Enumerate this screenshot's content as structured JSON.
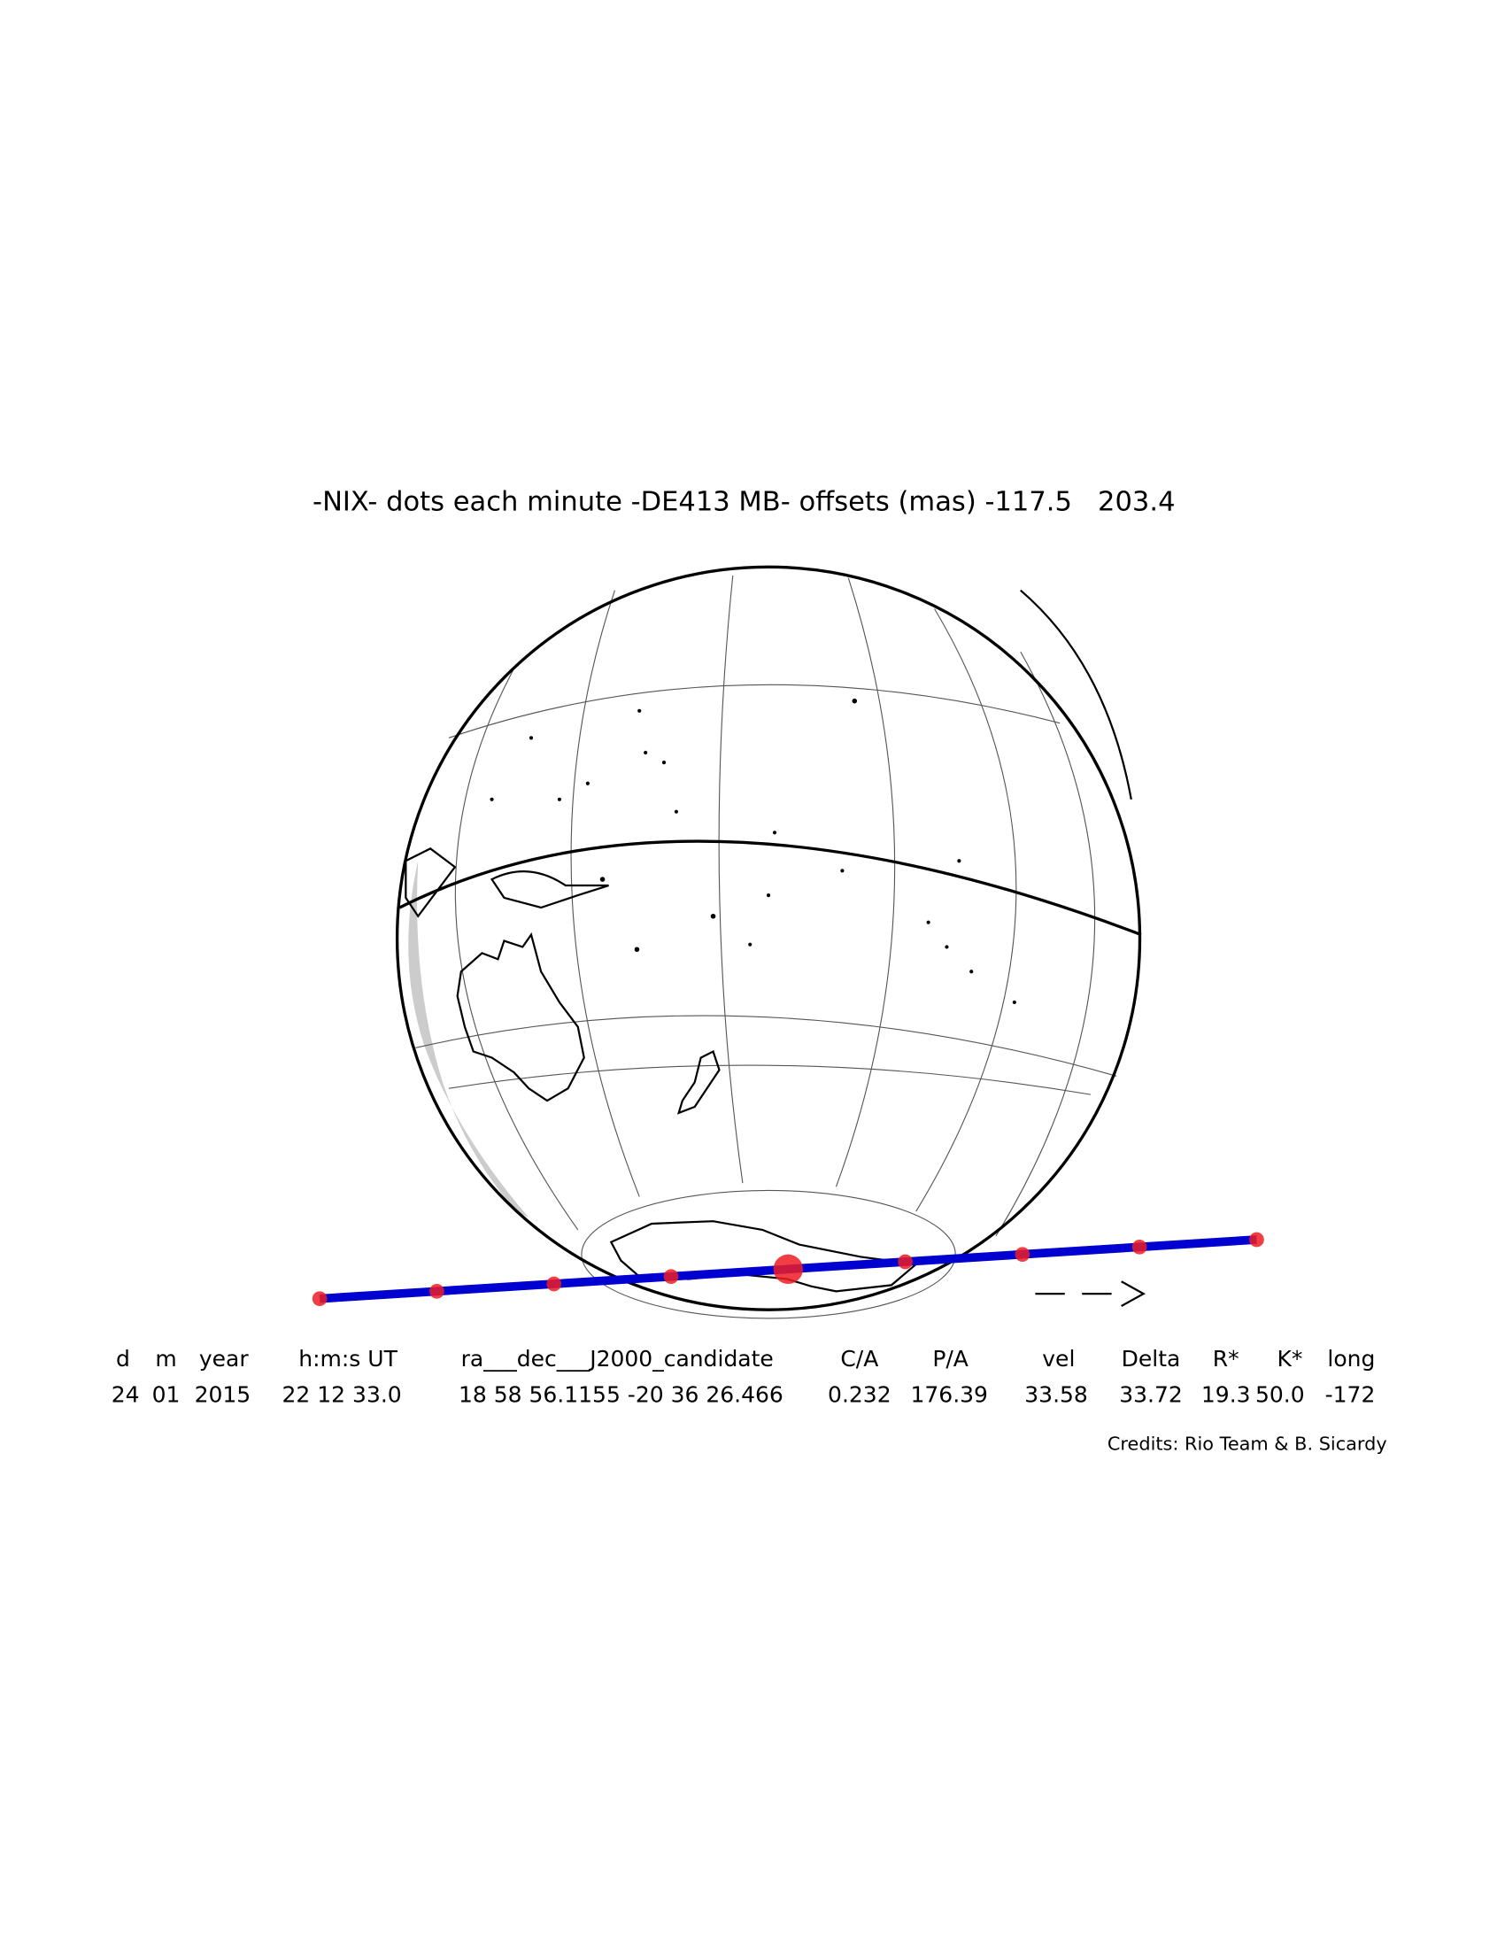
{
  "title": "-NIX- dots each minute -DE413 MB- offsets (mas) -117.5   203.4",
  "table": {
    "headers": [
      "d",
      "m",
      "year",
      "h:m:s UT",
      "ra___dec___J2000_candidate",
      "C/A",
      "P/A",
      "vel",
      "Delta",
      "R*",
      "K*",
      "long"
    ],
    "values": [
      "24",
      "01",
      "2015",
      "22 12 33.0",
      "18 58 56.1155 -20 36 26.466",
      "0.232",
      "176.39",
      "33.58",
      "33.72",
      "19.3",
      "50.0",
      "-172"
    ]
  },
  "credits": "Credits: Rio Team & B. Sicardy"
}
